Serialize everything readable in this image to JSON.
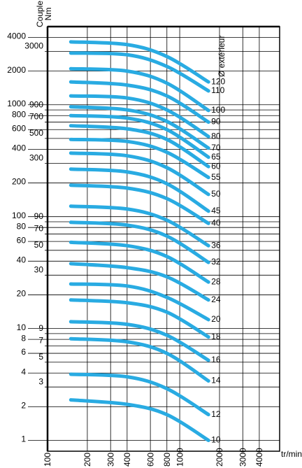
{
  "chart_data": {
    "type": "line",
    "ylabel": "Couple",
    "yunit": "Nm",
    "xlabel": "tr/min",
    "legend_title": "Ø extérieur",
    "x": [
      150,
      400,
      800,
      1650
    ],
    "xlim": [
      100,
      5700
    ],
    "xticks": [
      100,
      200,
      300,
      400,
      600,
      800,
      1000,
      2000,
      3000,
      4000
    ],
    "ylim": [
      0.8,
      5000
    ],
    "yticks": [
      1,
      2,
      3,
      4,
      5,
      6,
      7,
      8,
      9,
      10,
      20,
      30,
      40,
      50,
      60,
      70,
      80,
      90,
      100,
      200,
      300,
      400,
      500,
      600,
      700,
      800,
      900,
      1000,
      2000,
      3000,
      4000
    ],
    "log_x": true,
    "log_y": true,
    "grid": true,
    "series": [
      {
        "name": "120",
        "color": "#29abe2",
        "values": [
          3650,
          3450,
          2700,
          1600
        ]
      },
      {
        "name": "110",
        "color": "#29abe2",
        "values": [
          2900,
          2800,
          2200,
          1330
        ]
      },
      {
        "name": "100",
        "color": "#29abe2",
        "values": [
          2100,
          2000,
          1560,
          890
        ]
      },
      {
        "name": "90",
        "color": "#29abe2",
        "values": [
          1600,
          1500,
          1200,
          700
        ]
      },
      {
        "name": "80",
        "color": "#29abe2",
        "values": [
          1200,
          1150,
          900,
          520
        ]
      },
      {
        "name": "70",
        "color": "#29abe2",
        "values": [
          960,
          900,
          710,
          410
        ]
      },
      {
        "name": "65",
        "color": "#29abe2",
        "values": [
          800,
          760,
          600,
          340
        ]
      },
      {
        "name": "60",
        "color": "#29abe2",
        "values": [
          650,
          610,
          490,
          280
        ]
      },
      {
        "name": "55",
        "color": "#29abe2",
        "values": [
          490,
          470,
          376,
          224
        ]
      },
      {
        "name": "50",
        "color": "#29abe2",
        "values": [
          370,
          350,
          274,
          158
        ]
      },
      {
        "name": "45",
        "color": "#29abe2",
        "values": [
          266,
          251,
          197,
          112
        ]
      },
      {
        "name": "40",
        "color": "#29abe2",
        "values": [
          191,
          180,
          145,
          87
        ]
      },
      {
        "name": "36",
        "color": "#29abe2",
        "values": [
          124,
          117,
          93,
          55
        ]
      },
      {
        "name": "32",
        "color": "#29abe2",
        "values": [
          89,
          84,
          67,
          39
        ]
      },
      {
        "name": "28",
        "color": "#29abe2",
        "values": [
          59,
          55,
          44,
          26
        ]
      },
      {
        "name": "24",
        "color": "#29abe2",
        "values": [
          38,
          35,
          29,
          18
        ]
      },
      {
        "name": "20",
        "color": "#29abe2",
        "values": [
          25,
          24,
          19,
          12
        ]
      },
      {
        "name": "18",
        "color": "#29abe2",
        "values": [
          18,
          17,
          14,
          8.4
        ]
      },
      {
        "name": "16",
        "color": "#29abe2",
        "values": [
          11.5,
          10.9,
          8.7,
          5.2
        ]
      },
      {
        "name": "14",
        "color": "#29abe2",
        "values": [
          8.1,
          7.6,
          6.0,
          3.4
        ]
      },
      {
        "name": "12",
        "color": "#29abe2",
        "values": [
          3.9,
          3.7,
          2.9,
          1.7
        ]
      },
      {
        "name": "10",
        "color": "#29abe2",
        "values": [
          2.3,
          2.1,
          1.7,
          1.0
        ]
      }
    ]
  }
}
